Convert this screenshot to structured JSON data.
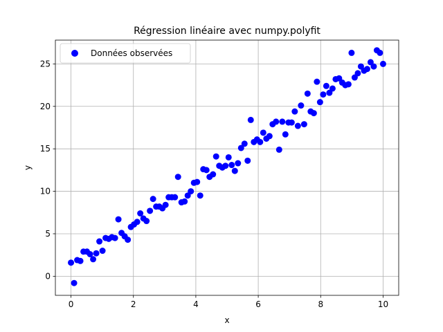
{
  "chart_data": {
    "type": "scatter",
    "title": "Régression linéaire avec numpy.polyfit",
    "xlabel": "x",
    "ylabel": "y",
    "xlim": [
      -0.5,
      10.5
    ],
    "ylim": [
      -2.25,
      27.8
    ],
    "xticks": [
      0,
      2,
      4,
      6,
      8,
      10
    ],
    "xtick_labels": [
      "0",
      "2",
      "4",
      "6",
      "8",
      "10"
    ],
    "yticks": [
      0,
      5,
      10,
      15,
      20,
      25
    ],
    "ytick_labels": [
      "0",
      "5",
      "10",
      "15",
      "20",
      "25"
    ],
    "grid": true,
    "legend": "top-left",
    "series": [
      {
        "name": "Données observées",
        "color": "#0000ff",
        "x": [
          0.0,
          0.1,
          0.2,
          0.3,
          0.4,
          0.51,
          0.61,
          0.71,
          0.81,
          0.91,
          1.01,
          1.11,
          1.21,
          1.31,
          1.41,
          1.52,
          1.62,
          1.72,
          1.82,
          1.92,
          2.02,
          2.12,
          2.22,
          2.32,
          2.42,
          2.53,
          2.63,
          2.73,
          2.83,
          2.93,
          3.03,
          3.13,
          3.23,
          3.33,
          3.43,
          3.54,
          3.64,
          3.74,
          3.84,
          3.94,
          4.04,
          4.14,
          4.24,
          4.34,
          4.44,
          4.55,
          4.65,
          4.75,
          4.85,
          4.95,
          5.05,
          5.15,
          5.25,
          5.35,
          5.45,
          5.56,
          5.66,
          5.76,
          5.86,
          5.96,
          6.06,
          6.16,
          6.26,
          6.36,
          6.46,
          6.57,
          6.67,
          6.77,
          6.87,
          6.97,
          7.07,
          7.17,
          7.27,
          7.37,
          7.47,
          7.58,
          7.68,
          7.78,
          7.88,
          7.98,
          8.08,
          8.18,
          8.28,
          8.38,
          8.48,
          8.59,
          8.69,
          8.79,
          8.89,
          8.99,
          9.09,
          9.19,
          9.29,
          9.39,
          9.49,
          9.6,
          9.7,
          9.8,
          9.9,
          10.0
        ],
        "y": [
          1.6,
          -0.8,
          1.9,
          1.8,
          2.9,
          2.9,
          2.6,
          2.0,
          2.7,
          4.1,
          3.0,
          4.5,
          4.4,
          4.6,
          4.5,
          6.7,
          5.1,
          4.7,
          4.3,
          5.8,
          6.1,
          6.4,
          7.4,
          6.8,
          6.5,
          7.7,
          9.1,
          8.2,
          8.2,
          8.0,
          8.4,
          9.3,
          9.3,
          9.3,
          11.7,
          8.7,
          8.8,
          9.5,
          10.0,
          11.0,
          11.1,
          9.5,
          12.6,
          12.5,
          11.7,
          12.0,
          14.1,
          13.0,
          12.8,
          13.0,
          14.0,
          13.1,
          12.4,
          13.3,
          15.1,
          15.6,
          13.6,
          18.4,
          15.8,
          16.1,
          15.8,
          16.9,
          16.2,
          16.5,
          17.9,
          18.2,
          14.9,
          18.2,
          16.7,
          18.1,
          18.1,
          19.4,
          17.7,
          20.1,
          17.9,
          21.5,
          19.4,
          19.2,
          22.9,
          20.5,
          21.4,
          22.4,
          21.6,
          22.1,
          23.2,
          23.3,
          22.8,
          22.5,
          22.6,
          26.3,
          23.4,
          23.9,
          24.7,
          24.2,
          24.4,
          25.2,
          24.7,
          26.6,
          26.3,
          25.0
        ]
      }
    ]
  }
}
